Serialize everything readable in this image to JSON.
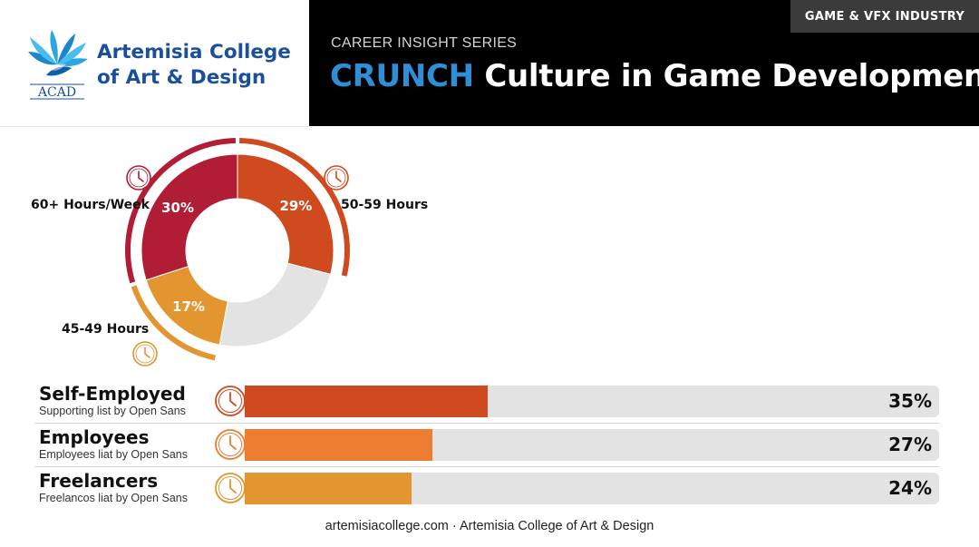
{
  "brand": {
    "logo_text": "ACAD",
    "name_line1": "Artemisia College",
    "name_line2": "of Art & Design"
  },
  "header": {
    "tag": "GAME & VFX INDUSTRY",
    "kicker": "CAREER INSIGHT SERIES",
    "title_accent": "CRUNCH",
    "title_rest": " Culture in Game Development"
  },
  "chart_data": [
    {
      "type": "pie",
      "categories": [
        "60+ Hours/Week",
        "50-59 Hours",
        "",
        "45-49 Hours"
      ],
      "values": [
        30,
        29,
        24,
        17
      ],
      "data_labels": [
        "30%",
        "29%",
        "",
        "17%"
      ],
      "colors": [
        "#b01d35",
        "#d04a1f",
        "#e3e3e3",
        "#e3952f"
      ],
      "icons": [
        "clock-icon",
        "clock-icon",
        "",
        "clock-icon"
      ]
    },
    {
      "type": "bar",
      "orientation": "horizontal",
      "categories": [
        "Self-Employed",
        "Employees",
        "Freelancers"
      ],
      "subtitles": [
        "Supporting list by Open Sans",
        "Employees liat by Open Sans",
        "Freelancos liat by Open Sans"
      ],
      "values": [
        35,
        27,
        24
      ],
      "value_labels": [
        "35%",
        "27%",
        "24%"
      ],
      "colors": [
        "#d04a1f",
        "#ec7d31",
        "#e3952f"
      ],
      "xlim": [
        0,
        100
      ]
    }
  ],
  "footer": "artemisiacollege.com · Artemisia College of Art & Design"
}
